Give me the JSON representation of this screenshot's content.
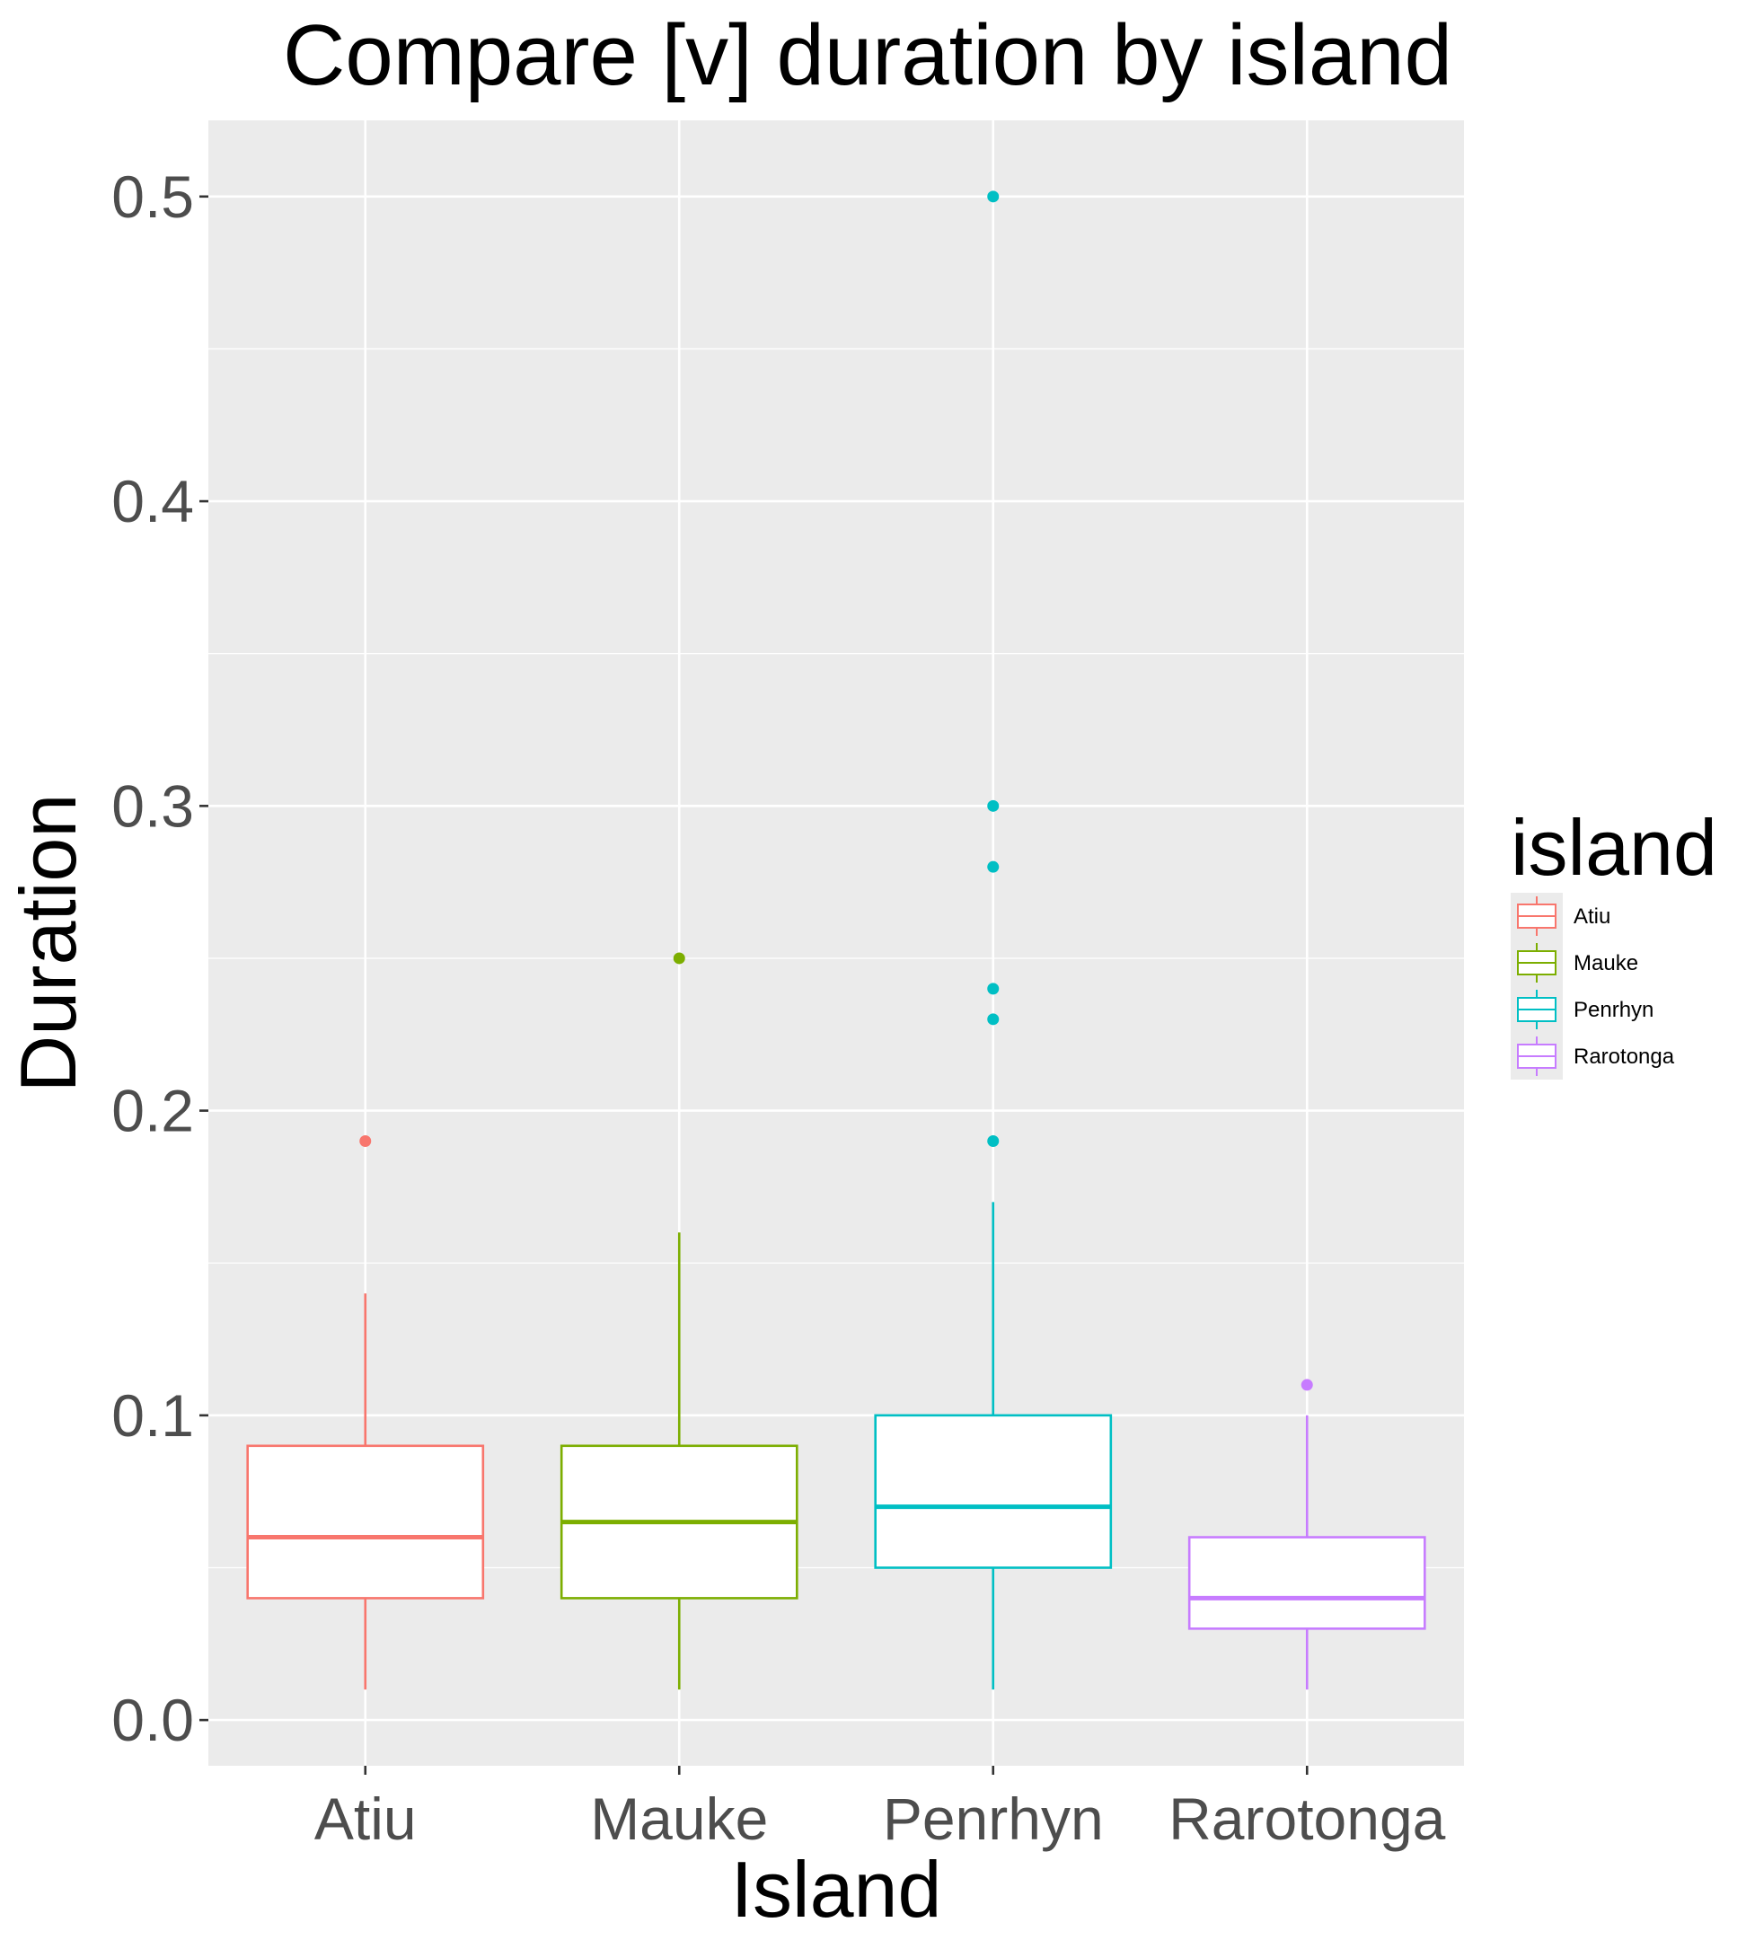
{
  "chart_data": {
    "type": "boxplot",
    "title": "Compare [v] duration by island",
    "xlabel": "Island",
    "ylabel": "Duration",
    "categories": [
      "Atiu",
      "Mauke",
      "Penrhyn",
      "Rarotonga"
    ],
    "ylim": [
      -0.015,
      0.525
    ],
    "yticks": [
      0.0,
      0.1,
      0.2,
      0.3,
      0.4,
      0.5
    ],
    "ytick_labels": [
      "0.0",
      "0.1",
      "0.2",
      "0.3",
      "0.4",
      "0.5"
    ],
    "ygrid_minor": [
      0.05,
      0.15,
      0.25,
      0.35,
      0.45
    ],
    "grid": true,
    "legend": {
      "title": "island",
      "placement": "right",
      "entries": [
        "Atiu",
        "Mauke",
        "Penrhyn",
        "Rarotonga"
      ]
    },
    "series": [
      {
        "name": "Atiu",
        "color": "#F8766D",
        "whisker_low": 0.01,
        "q1": 0.04,
        "median": 0.06,
        "q3": 0.09,
        "whisker_high": 0.14,
        "outliers": [
          0.19
        ]
      },
      {
        "name": "Mauke",
        "color": "#7CAE00",
        "whisker_low": 0.01,
        "q1": 0.04,
        "median": 0.065,
        "q3": 0.09,
        "whisker_high": 0.16,
        "outliers": [
          0.25
        ]
      },
      {
        "name": "Penrhyn",
        "color": "#00BFC4",
        "whisker_low": 0.01,
        "q1": 0.05,
        "median": 0.07,
        "q3": 0.1,
        "whisker_high": 0.17,
        "outliers": [
          0.19,
          0.23,
          0.24,
          0.28,
          0.3,
          0.5
        ]
      },
      {
        "name": "Rarotonga",
        "color": "#C77CFF",
        "whisker_low": 0.01,
        "q1": 0.03,
        "median": 0.04,
        "q3": 0.06,
        "whisker_high": 0.1,
        "outliers": [
          0.11
        ]
      }
    ],
    "style": {
      "panel_background": "#EBEBEB",
      "grid_color": "#FFFFFF",
      "box_fill": "#FFFFFF"
    }
  }
}
